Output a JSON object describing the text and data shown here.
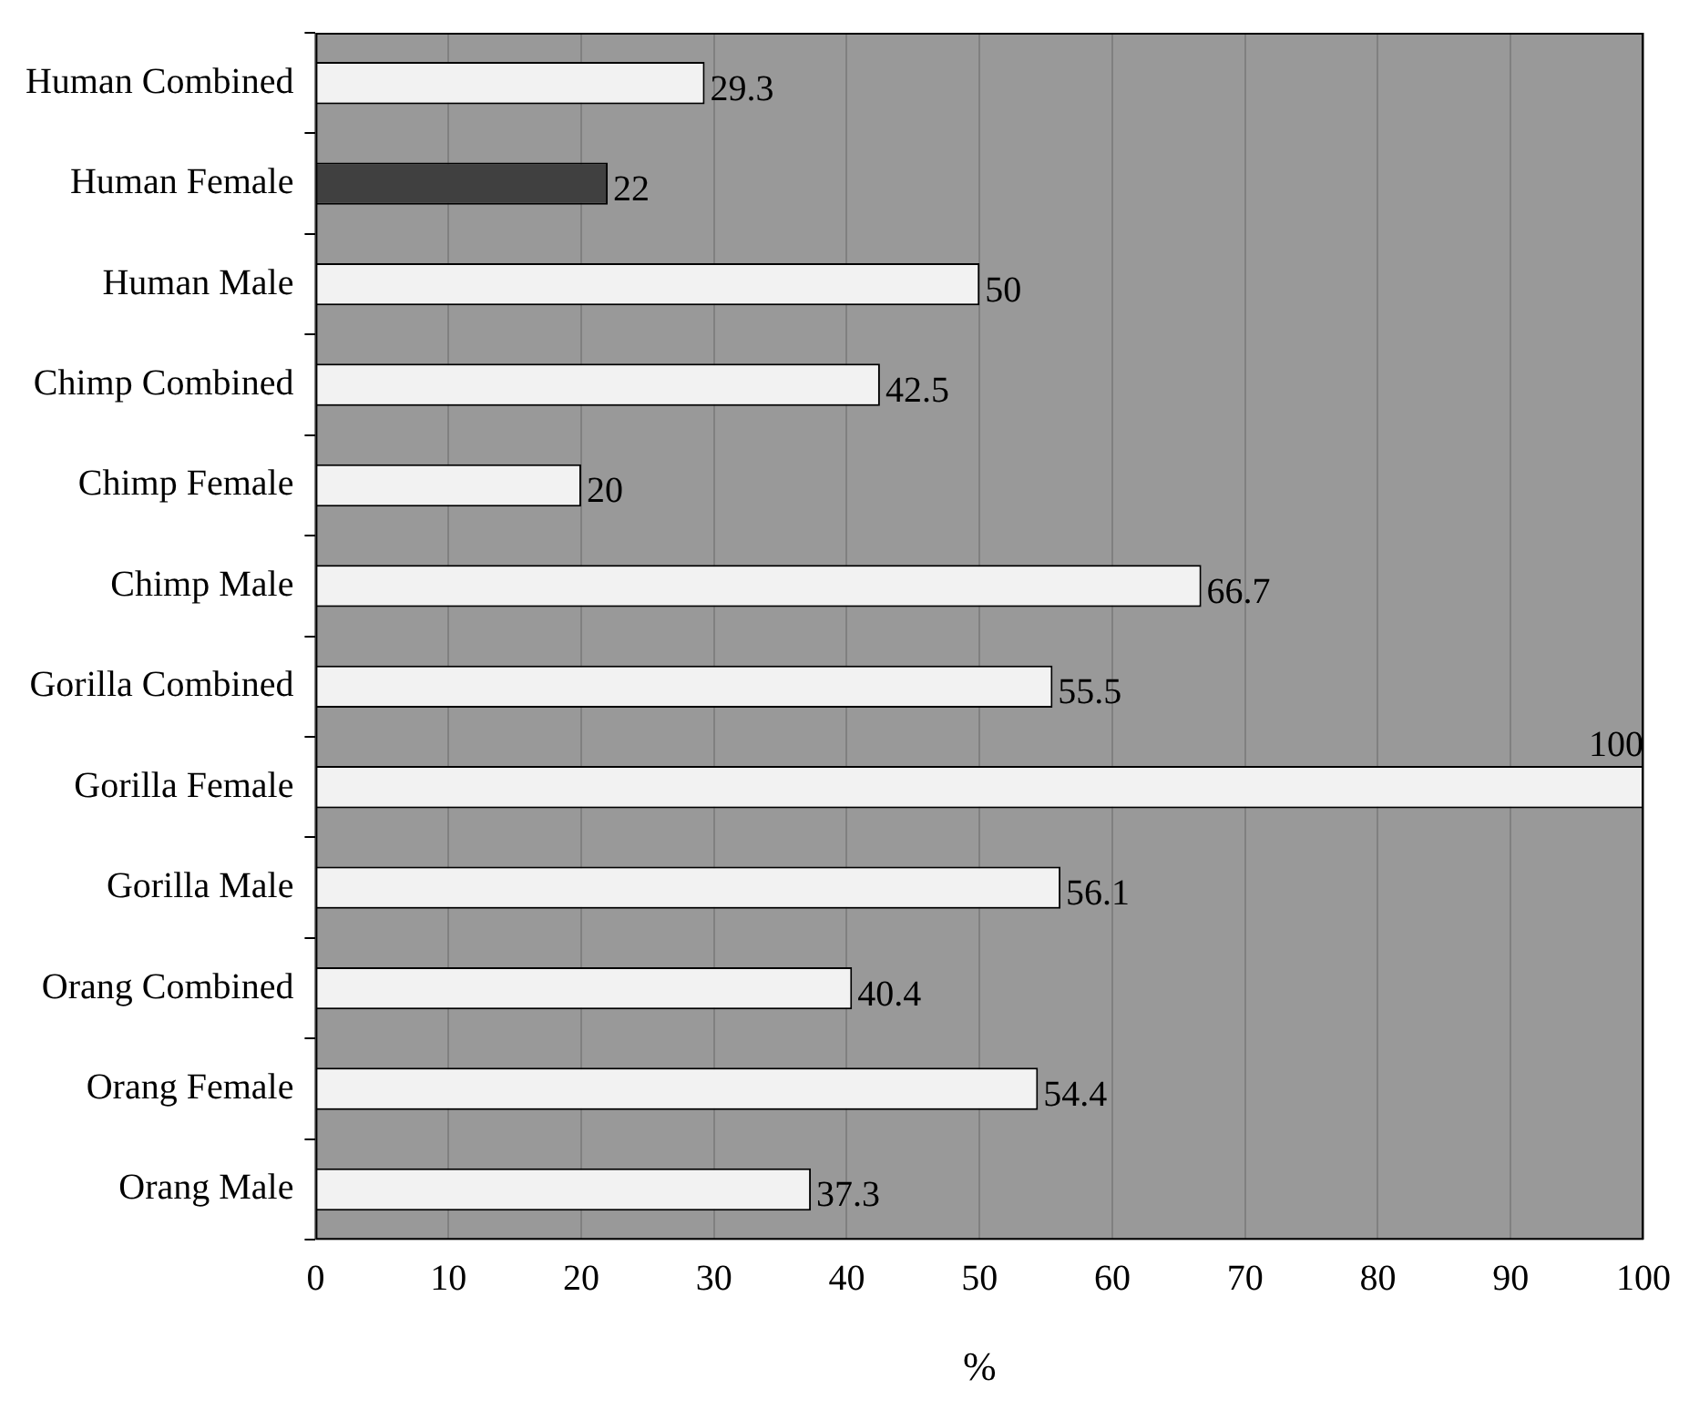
{
  "chart_data": {
    "type": "bar",
    "orientation": "horizontal",
    "xlabel": "%",
    "categories": [
      "Human Combined",
      "Human Female",
      "Human Male",
      "Chimp Combined",
      "Chimp Female",
      "Chimp Male",
      "Gorilla Combined",
      "Gorilla Female",
      "Gorilla Male",
      "Orang Combined",
      "Orang Female",
      "Orang Male"
    ],
    "values": [
      29.3,
      22,
      50,
      42.5,
      20,
      66.7,
      55.5,
      100,
      56.1,
      40.4,
      54.4,
      37.3
    ],
    "colors": [
      "#f2f2f2",
      "#404040",
      "#f2f2f2",
      "#f2f2f2",
      "#f2f2f2",
      "#f2f2f2",
      "#f2f2f2",
      "#f2f2f2",
      "#f2f2f2",
      "#f2f2f2",
      "#f2f2f2",
      "#f2f2f2"
    ],
    "xlim": [
      0,
      100
    ],
    "xticks": [
      0,
      10,
      20,
      30,
      40,
      50,
      60,
      70,
      80,
      90,
      100
    ],
    "grid": "x",
    "data_labels": true,
    "legend": false
  }
}
